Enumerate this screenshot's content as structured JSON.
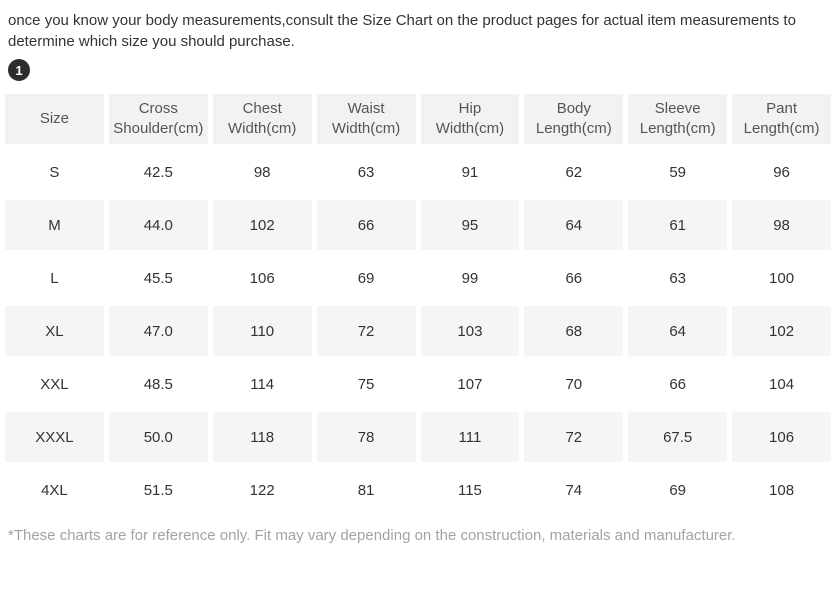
{
  "page": {
    "intro_text": "once you know your body measurements,consult the Size Chart on the product pages for actual item measurements to determine which size you should purchase.",
    "step_badge": "1",
    "footnote": "*These charts are for reference only. Fit may vary depending on the construction, materials and manufacturer."
  },
  "size_chart": {
    "columns": [
      "Size",
      "Cross Shoulder(cm)",
      "Chest Width(cm)",
      "Waist Width(cm)",
      "Hip Width(cm)",
      "Body Length(cm)",
      "Sleeve Length(cm)",
      "Pant Length(cm)"
    ],
    "rows": [
      [
        "S",
        "42.5",
        "98",
        "63",
        "91",
        "62",
        "59",
        "96"
      ],
      [
        "M",
        "44.0",
        "102",
        "66",
        "95",
        "64",
        "61",
        "98"
      ],
      [
        "L",
        "45.5",
        "106",
        "69",
        "99",
        "66",
        "63",
        "100"
      ],
      [
        "XL",
        "47.0",
        "110",
        "72",
        "103",
        "68",
        "64",
        "102"
      ],
      [
        "XXL",
        "48.5",
        "114",
        "75",
        "107",
        "70",
        "66",
        "104"
      ],
      [
        "XXXL",
        "50.0",
        "118",
        "78",
        "111",
        "72",
        "67.5",
        "106"
      ],
      [
        "4XL",
        "51.5",
        "122",
        "81",
        "115",
        "74",
        "69",
        "108"
      ]
    ]
  },
  "colors": {
    "header_bg": "#f2f2f2",
    "stripe_bg": "#f5f5f5",
    "badge_bg": "#2d2d2d",
    "badge_text": "#ffffff",
    "body_text": "#333333",
    "header_text": "#555555",
    "footnote_text": "#a3a3a3"
  }
}
